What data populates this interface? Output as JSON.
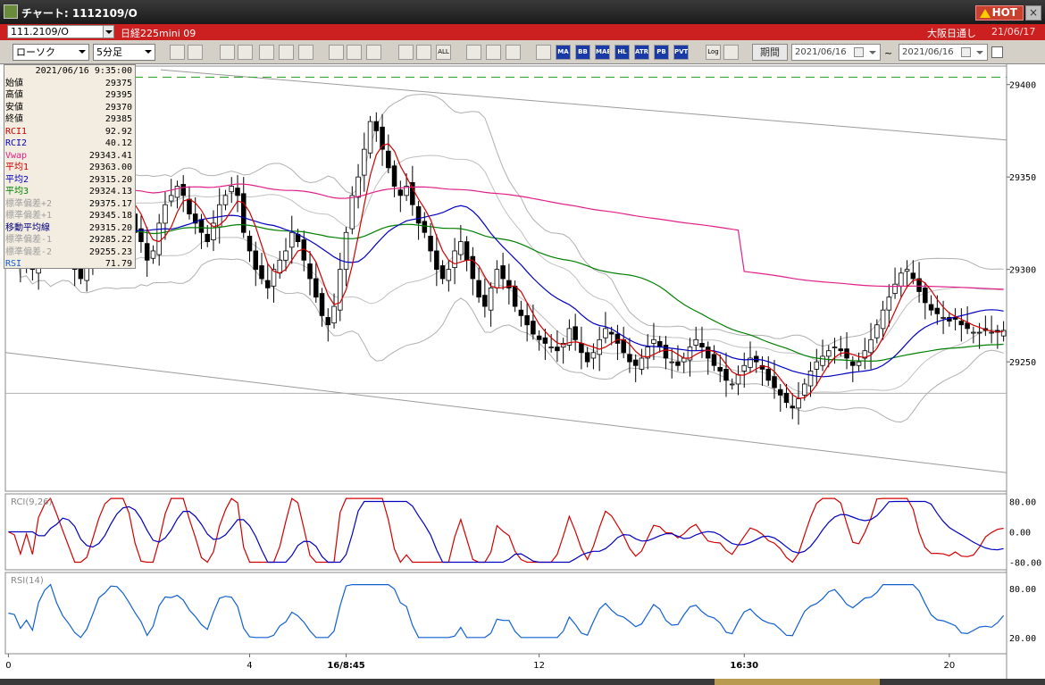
{
  "window": {
    "title": "チャート: 1112109/O",
    "hot_label": "HOT",
    "close_label": "×",
    "colors": {
      "titlebar": "#1f1f1f",
      "infobar": "#cc1f1f",
      "hot": "#c8402e"
    }
  },
  "infobar": {
    "symbol": "111.2109/O",
    "instrument": "日経225mini 09",
    "session": "大阪日通し",
    "date": "21/06/17"
  },
  "toolbar": {
    "chart_type": "ローソク",
    "interval": "5分足",
    "period_label": "期間",
    "date_from": "2021/06/16",
    "date_to": "2021/06/16",
    "tilde": "~",
    "icons": [
      {
        "name": "zoom-icon",
        "label": ""
      },
      {
        "name": "cursor-icon",
        "label": ""
      },
      {
        "name": "crosshair-icon",
        "label": ""
      },
      {
        "name": "search-chart-icon",
        "label": ""
      },
      {
        "name": "bar-chart-icon",
        "label": ""
      },
      {
        "name": "compare-icon",
        "label": ""
      },
      {
        "name": "disabled-icon",
        "label": ""
      },
      {
        "name": "draw-line-icon",
        "label": ""
      },
      {
        "name": "select-arrow-icon",
        "label": ""
      },
      {
        "name": "undo-icon",
        "label": ""
      },
      {
        "name": "candle-1-icon",
        "label": ""
      },
      {
        "name": "candle-2-icon",
        "label": ""
      },
      {
        "name": "all-icon",
        "label": "ALL"
      },
      {
        "name": "settings-icon",
        "label": ""
      },
      {
        "name": "pen-icon",
        "label": ""
      },
      {
        "name": "palette-icon",
        "label": ""
      },
      {
        "name": "bars-icon",
        "label": ""
      },
      {
        "name": "ma-icon",
        "label": "MA"
      },
      {
        "name": "bb-icon",
        "label": "BB"
      },
      {
        "name": "mae-icon",
        "label": "MAE"
      },
      {
        "name": "hl-icon",
        "label": "HL"
      },
      {
        "name": "atr-icon",
        "label": "ATR"
      },
      {
        "name": "pb-icon",
        "label": "PB"
      },
      {
        "name": "pvt-icon",
        "label": "PVT"
      },
      {
        "name": "log-icon",
        "label": "Log"
      },
      {
        "name": "export-icon",
        "label": ""
      }
    ]
  },
  "datawindow": {
    "timestamp": "2021/06/16 9:35:00",
    "rows": [
      {
        "label": "始値",
        "value": "29375",
        "color": "#000000"
      },
      {
        "label": "高値",
        "value": "29395",
        "color": "#000000"
      },
      {
        "label": "安値",
        "value": "29370",
        "color": "#000000"
      },
      {
        "label": "終値",
        "value": "29385",
        "color": "#000000"
      },
      {
        "label": "RCI1",
        "value": "92.92",
        "color": "#d00000"
      },
      {
        "label": "RCI2",
        "value": "40.12",
        "color": "#0000c0"
      },
      {
        "label": "Vwap",
        "value": "29343.41",
        "color": "#e0208a"
      },
      {
        "label": "平均1",
        "value": "29363.00",
        "color": "#d00000"
      },
      {
        "label": "平均2",
        "value": "29315.20",
        "color": "#0000c0"
      },
      {
        "label": "平均3",
        "value": "29324.13",
        "color": "#008000"
      },
      {
        "label": "標準偏差+2",
        "value": "29375.17",
        "color": "#a0a0a0"
      },
      {
        "label": "標準偏差+1",
        "value": "29345.18",
        "color": "#a0a0a0"
      },
      {
        "label": "移動平均線",
        "value": "29315.20",
        "color": "#000080"
      },
      {
        "label": "標準偏差-1",
        "value": "29285.22",
        "color": "#a0a0a0"
      },
      {
        "label": "標準偏差-2",
        "value": "29255.23",
        "color": "#a0a0a0"
      },
      {
        "label": "RSI",
        "value": "71.79",
        "color": "#1060d0"
      }
    ]
  },
  "chart_data": [
    {
      "type": "candlestick",
      "title": "",
      "ylim": [
        29180,
        29410
      ],
      "yticks": [
        "29400",
        "29350",
        "29300",
        "29250"
      ],
      "ytick_values": [
        29400,
        29350,
        29300,
        29250
      ],
      "xticks": [
        "0",
        "4",
        "16/8:45",
        "12",
        "16:30",
        "20"
      ],
      "xtick_index": [
        0,
        40,
        56,
        88,
        122,
        156
      ],
      "dashed_level": 29404,
      "n_bars": 166,
      "close": [
        29325,
        29318,
        29302,
        29310,
        29300,
        29320,
        29330,
        29345,
        29330,
        29320,
        29310,
        29300,
        29295,
        29305,
        29315,
        29325,
        29330,
        29340,
        29345,
        29340,
        29330,
        29320,
        29315,
        29305,
        29310,
        29325,
        29335,
        29340,
        29345,
        29340,
        29330,
        29325,
        29320,
        29315,
        29325,
        29335,
        29340,
        29345,
        29340,
        29320,
        29310,
        29300,
        29295,
        29290,
        29300,
        29305,
        29310,
        29320,
        29315,
        29305,
        29295,
        29285,
        29275,
        29270,
        29280,
        29300,
        29320,
        29340,
        29350,
        29365,
        29380,
        29375,
        29365,
        29355,
        29345,
        29340,
        29345,
        29335,
        29325,
        29320,
        29310,
        29300,
        29295,
        29300,
        29310,
        29315,
        29305,
        29295,
        29285,
        29280,
        29290,
        29300,
        29295,
        29290,
        29280,
        29275,
        29270,
        29265,
        29262,
        29260,
        29258,
        29256,
        29260,
        29268,
        29262,
        29255,
        29250,
        29255,
        29262,
        29268,
        29265,
        29260,
        29255,
        29250,
        29248,
        29252,
        29258,
        29262,
        29258,
        29252,
        29250,
        29248,
        29252,
        29258,
        29262,
        29258,
        29252,
        29248,
        29245,
        29240,
        29238,
        29243,
        29248,
        29252,
        29250,
        29246,
        29240,
        29236,
        29232,
        29228,
        29225,
        29230,
        29238,
        29245,
        29250,
        29253,
        29256,
        29258,
        29256,
        29252,
        29248,
        29250,
        29256,
        29262,
        29270,
        29278,
        29285,
        29292,
        29298,
        29300,
        29295,
        29288,
        29282,
        29278,
        29276,
        29274,
        29272,
        29273,
        29270,
        29268,
        29266,
        29266,
        29267,
        29266,
        29266,
        29267
      ],
      "series": [
        {
          "name": "平均1",
          "color": "#d00000"
        },
        {
          "name": "平均2",
          "color": "#0000c0"
        },
        {
          "name": "平均3",
          "color": "#008000"
        },
        {
          "name": "Vwap",
          "color": "#e0208a"
        }
      ]
    },
    {
      "type": "line",
      "title": "RCI(9,26)",
      "ylim": [
        -100,
        100
      ],
      "yticks": [
        "80.00",
        "0.00",
        "-80.00"
      ],
      "ytick_values": [
        80,
        0,
        -80
      ],
      "series": [
        {
          "name": "RCI1",
          "color": "#d00000"
        },
        {
          "name": "RCI2",
          "color": "#0000c0"
        }
      ]
    },
    {
      "type": "line",
      "title": "RSI(14)",
      "ylim": [
        0,
        100
      ],
      "yticks": [
        "80.00",
        "20.00"
      ],
      "ytick_values": [
        80,
        20
      ],
      "series": [
        {
          "name": "RSI",
          "color": "#1060d0"
        }
      ]
    }
  ]
}
